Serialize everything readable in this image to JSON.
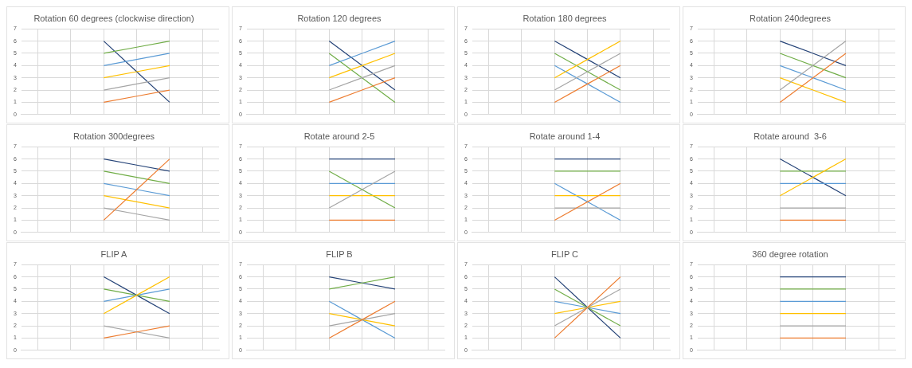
{
  "chart_data": [
    {
      "type": "line",
      "title": "Rotation 60 degrees (clockwise direction)",
      "categories": [
        null,
        null,
        null,
        null,
        null,
        null
      ],
      "ylim": [
        0,
        7
      ],
      "yticks": [
        0,
        1,
        2,
        3,
        4,
        5,
        6,
        7
      ],
      "grid": true,
      "tick_labels": "y",
      "series": [
        {
          "color": "#ed7d31",
          "values": [
            null,
            null,
            1,
            1.5,
            2,
            null
          ]
        },
        {
          "color": "#a5a5a5",
          "values": [
            null,
            null,
            2,
            2.5,
            3,
            null
          ]
        },
        {
          "color": "#ffc000",
          "values": [
            null,
            null,
            3,
            3.5,
            4,
            null
          ]
        },
        {
          "color": "#5b9bd5",
          "values": [
            null,
            null,
            4,
            4.5,
            5,
            null
          ]
        },
        {
          "color": "#70ad47",
          "values": [
            null,
            null,
            5,
            5.5,
            6,
            null
          ]
        },
        {
          "color": "#264478",
          "values": [
            null,
            null,
            6,
            3.5,
            1,
            null
          ]
        }
      ]
    },
    {
      "type": "line",
      "title": "Rotation 120 degrees",
      "categories": [
        null,
        null,
        null,
        null,
        null,
        null
      ],
      "ylim": [
        0,
        7
      ],
      "yticks": [
        0,
        1,
        2,
        3,
        4,
        5,
        6,
        7
      ],
      "grid": true,
      "tick_labels": "y",
      "series": [
        {
          "color": "#ed7d31",
          "values": [
            null,
            null,
            1,
            2,
            3,
            null
          ]
        },
        {
          "color": "#a5a5a5",
          "values": [
            null,
            null,
            2,
            3,
            4,
            null
          ]
        },
        {
          "color": "#ffc000",
          "values": [
            null,
            null,
            3,
            4,
            5,
            null
          ]
        },
        {
          "color": "#5b9bd5",
          "values": [
            null,
            null,
            4,
            5,
            6,
            null
          ]
        },
        {
          "color": "#70ad47",
          "values": [
            null,
            null,
            5,
            3,
            1,
            null
          ]
        },
        {
          "color": "#264478",
          "values": [
            null,
            null,
            6,
            4,
            2,
            null
          ]
        }
      ]
    },
    {
      "type": "line",
      "title": "Rotation 180 degrees",
      "categories": [
        null,
        null,
        null,
        null,
        null,
        null
      ],
      "ylim": [
        0,
        7
      ],
      "yticks": [
        0,
        1,
        2,
        3,
        4,
        5,
        6,
        7
      ],
      "grid": true,
      "tick_labels": "y",
      "series": [
        {
          "color": "#ed7d31",
          "values": [
            null,
            null,
            1,
            2.5,
            4,
            null
          ]
        },
        {
          "color": "#a5a5a5",
          "values": [
            null,
            null,
            2,
            3.5,
            5,
            null
          ]
        },
        {
          "color": "#ffc000",
          "values": [
            null,
            null,
            3,
            4.5,
            6,
            null
          ]
        },
        {
          "color": "#5b9bd5",
          "values": [
            null,
            null,
            4,
            2.5,
            1,
            null
          ]
        },
        {
          "color": "#70ad47",
          "values": [
            null,
            null,
            5,
            3.5,
            2,
            null
          ]
        },
        {
          "color": "#264478",
          "values": [
            null,
            null,
            6,
            4.5,
            3,
            null
          ]
        }
      ]
    },
    {
      "type": "line",
      "title": "Rotation 240degrees",
      "categories": [
        null,
        null,
        null,
        null,
        null,
        null
      ],
      "ylim": [
        0,
        7
      ],
      "yticks": [
        0,
        1,
        2,
        3,
        4,
        5,
        6,
        7
      ],
      "grid": true,
      "tick_labels": "y",
      "series": [
        {
          "color": "#ed7d31",
          "values": [
            null,
            null,
            1,
            3,
            5,
            null
          ]
        },
        {
          "color": "#a5a5a5",
          "values": [
            null,
            null,
            2,
            4,
            6,
            null
          ]
        },
        {
          "color": "#ffc000",
          "values": [
            null,
            null,
            3,
            2,
            1,
            null
          ]
        },
        {
          "color": "#5b9bd5",
          "values": [
            null,
            null,
            4,
            3,
            2,
            null
          ]
        },
        {
          "color": "#70ad47",
          "values": [
            null,
            null,
            5,
            4,
            3,
            null
          ]
        },
        {
          "color": "#264478",
          "values": [
            null,
            null,
            6,
            5,
            4,
            null
          ]
        }
      ]
    },
    {
      "type": "line",
      "title": "Rotation 300degrees",
      "categories": [
        null,
        null,
        null,
        null,
        null,
        null
      ],
      "ylim": [
        0,
        7
      ],
      "yticks": [
        0,
        1,
        2,
        3,
        4,
        5,
        6,
        7
      ],
      "grid": true,
      "tick_labels": "y",
      "series": [
        {
          "color": "#ed7d31",
          "values": [
            null,
            null,
            1,
            3.5,
            6,
            null
          ]
        },
        {
          "color": "#a5a5a5",
          "values": [
            null,
            null,
            2,
            1.5,
            1,
            null
          ]
        },
        {
          "color": "#ffc000",
          "values": [
            null,
            null,
            3,
            2.5,
            2,
            null
          ]
        },
        {
          "color": "#5b9bd5",
          "values": [
            null,
            null,
            4,
            3.5,
            3,
            null
          ]
        },
        {
          "color": "#70ad47",
          "values": [
            null,
            null,
            5,
            4.5,
            4,
            null
          ]
        },
        {
          "color": "#264478",
          "values": [
            null,
            null,
            6,
            5.5,
            5,
            null
          ]
        }
      ]
    },
    {
      "type": "line",
      "title": "Rotate around 2-5",
      "categories": [
        null,
        null,
        null,
        null,
        null,
        null
      ],
      "ylim": [
        0,
        7
      ],
      "yticks": [
        0,
        1,
        2,
        3,
        4,
        5,
        6,
        7
      ],
      "grid": true,
      "tick_labels": "y",
      "series": [
        {
          "color": "#ed7d31",
          "values": [
            null,
            null,
            1,
            1,
            1,
            null
          ]
        },
        {
          "color": "#a5a5a5",
          "values": [
            null,
            null,
            2,
            3.5,
            5,
            null
          ]
        },
        {
          "color": "#ffc000",
          "values": [
            null,
            null,
            3,
            3,
            3,
            null
          ]
        },
        {
          "color": "#5b9bd5",
          "values": [
            null,
            null,
            4,
            4,
            4,
            null
          ]
        },
        {
          "color": "#70ad47",
          "values": [
            null,
            null,
            5,
            3.5,
            2,
            null
          ]
        },
        {
          "color": "#264478",
          "values": [
            null,
            null,
            6,
            6,
            6,
            null
          ]
        }
      ]
    },
    {
      "type": "line",
      "title": "Rotate around 1-4",
      "categories": [
        null,
        null,
        null,
        null,
        null,
        null
      ],
      "ylim": [
        0,
        7
      ],
      "yticks": [
        0,
        1,
        2,
        3,
        4,
        5,
        6,
        7
      ],
      "grid": true,
      "tick_labels": "y",
      "series": [
        {
          "color": "#ed7d31",
          "values": [
            null,
            null,
            1,
            2.5,
            4,
            null
          ]
        },
        {
          "color": "#a5a5a5",
          "values": [
            null,
            null,
            2,
            2,
            2,
            null
          ]
        },
        {
          "color": "#ffc000",
          "values": [
            null,
            null,
            3,
            3,
            3,
            null
          ]
        },
        {
          "color": "#5b9bd5",
          "values": [
            null,
            null,
            4,
            2.5,
            1,
            null
          ]
        },
        {
          "color": "#70ad47",
          "values": [
            null,
            null,
            5,
            5,
            5,
            null
          ]
        },
        {
          "color": "#264478",
          "values": [
            null,
            null,
            6,
            6,
            6,
            null
          ]
        }
      ]
    },
    {
      "type": "line",
      "title": "Rotate around  3-6",
      "categories": [
        null,
        null,
        null,
        null,
        null,
        null
      ],
      "ylim": [
        0,
        7
      ],
      "yticks": [
        0,
        1,
        2,
        3,
        4,
        5,
        6,
        7
      ],
      "grid": true,
      "tick_labels": "y",
      "series": [
        {
          "color": "#ed7d31",
          "values": [
            null,
            null,
            1,
            1,
            1,
            null
          ]
        },
        {
          "color": "#a5a5a5",
          "values": [
            null,
            null,
            2,
            2,
            2,
            null
          ]
        },
        {
          "color": "#ffc000",
          "values": [
            null,
            null,
            3,
            4.5,
            6,
            null
          ]
        },
        {
          "color": "#5b9bd5",
          "values": [
            null,
            null,
            4,
            4,
            4,
            null
          ]
        },
        {
          "color": "#70ad47",
          "values": [
            null,
            null,
            5,
            5,
            5,
            null
          ]
        },
        {
          "color": "#264478",
          "values": [
            null,
            null,
            6,
            4.5,
            3,
            null
          ]
        }
      ]
    },
    {
      "type": "line",
      "title": "FLIP A",
      "categories": [
        null,
        null,
        null,
        null,
        null,
        null
      ],
      "ylim": [
        0,
        7
      ],
      "yticks": [
        0,
        1,
        2,
        3,
        4,
        5,
        6,
        7
      ],
      "grid": true,
      "tick_labels": "y",
      "series": [
        {
          "color": "#ed7d31",
          "values": [
            null,
            null,
            1,
            1.5,
            2,
            null
          ]
        },
        {
          "color": "#a5a5a5",
          "values": [
            null,
            null,
            2,
            1.5,
            1,
            null
          ]
        },
        {
          "color": "#ffc000",
          "values": [
            null,
            null,
            3,
            4.5,
            6,
            null
          ]
        },
        {
          "color": "#5b9bd5",
          "values": [
            null,
            null,
            4,
            4.5,
            5,
            null
          ]
        },
        {
          "color": "#70ad47",
          "values": [
            null,
            null,
            5,
            4.5,
            4,
            null
          ]
        },
        {
          "color": "#264478",
          "values": [
            null,
            null,
            6,
            4.5,
            3,
            null
          ]
        }
      ]
    },
    {
      "type": "line",
      "title": "FLIP B",
      "categories": [
        null,
        null,
        null,
        null,
        null,
        null
      ],
      "ylim": [
        0,
        7
      ],
      "yticks": [
        0,
        1,
        2,
        3,
        4,
        5,
        6,
        7
      ],
      "grid": true,
      "tick_labels": "y",
      "series": [
        {
          "color": "#ed7d31",
          "values": [
            null,
            null,
            1,
            2.5,
            4,
            null
          ]
        },
        {
          "color": "#a5a5a5",
          "values": [
            null,
            null,
            2,
            2.5,
            3,
            null
          ]
        },
        {
          "color": "#ffc000",
          "values": [
            null,
            null,
            3,
            2.5,
            2,
            null
          ]
        },
        {
          "color": "#5b9bd5",
          "values": [
            null,
            null,
            4,
            2.5,
            1,
            null
          ]
        },
        {
          "color": "#70ad47",
          "values": [
            null,
            null,
            5,
            5.5,
            6,
            null
          ]
        },
        {
          "color": "#264478",
          "values": [
            null,
            null,
            6,
            5.5,
            5,
            null
          ]
        }
      ]
    },
    {
      "type": "line",
      "title": "FLIP C",
      "categories": [
        null,
        null,
        null,
        null,
        null,
        null
      ],
      "ylim": [
        0,
        7
      ],
      "yticks": [
        0,
        1,
        2,
        3,
        4,
        5,
        6,
        7
      ],
      "grid": true,
      "tick_labels": "y",
      "series": [
        {
          "color": "#ed7d31",
          "values": [
            null,
            null,
            1,
            3.5,
            6,
            null
          ]
        },
        {
          "color": "#a5a5a5",
          "values": [
            null,
            null,
            2,
            3.5,
            5,
            null
          ]
        },
        {
          "color": "#ffc000",
          "values": [
            null,
            null,
            3,
            3.5,
            4,
            null
          ]
        },
        {
          "color": "#5b9bd5",
          "values": [
            null,
            null,
            4,
            3.5,
            3,
            null
          ]
        },
        {
          "color": "#70ad47",
          "values": [
            null,
            null,
            5,
            3.5,
            2,
            null
          ]
        },
        {
          "color": "#264478",
          "values": [
            null,
            null,
            6,
            3.5,
            1,
            null
          ]
        }
      ]
    },
    {
      "type": "line",
      "title": "360 degree rotation",
      "categories": [
        null,
        null,
        null,
        null,
        null,
        null
      ],
      "ylim": [
        0,
        7
      ],
      "yticks": [
        0,
        1,
        2,
        3,
        4,
        5,
        6,
        7
      ],
      "grid": true,
      "tick_labels": "y",
      "series": [
        {
          "color": "#ed7d31",
          "values": [
            null,
            null,
            1,
            1,
            1,
            null
          ]
        },
        {
          "color": "#a5a5a5",
          "values": [
            null,
            null,
            2,
            2,
            2,
            null
          ]
        },
        {
          "color": "#ffc000",
          "values": [
            null,
            null,
            3,
            3,
            3,
            null
          ]
        },
        {
          "color": "#5b9bd5",
          "values": [
            null,
            null,
            4,
            4,
            4,
            null
          ]
        },
        {
          "color": "#70ad47",
          "values": [
            null,
            null,
            5,
            5,
            5,
            null
          ]
        },
        {
          "color": "#264478",
          "values": [
            null,
            null,
            6,
            6,
            6,
            null
          ]
        }
      ]
    }
  ]
}
